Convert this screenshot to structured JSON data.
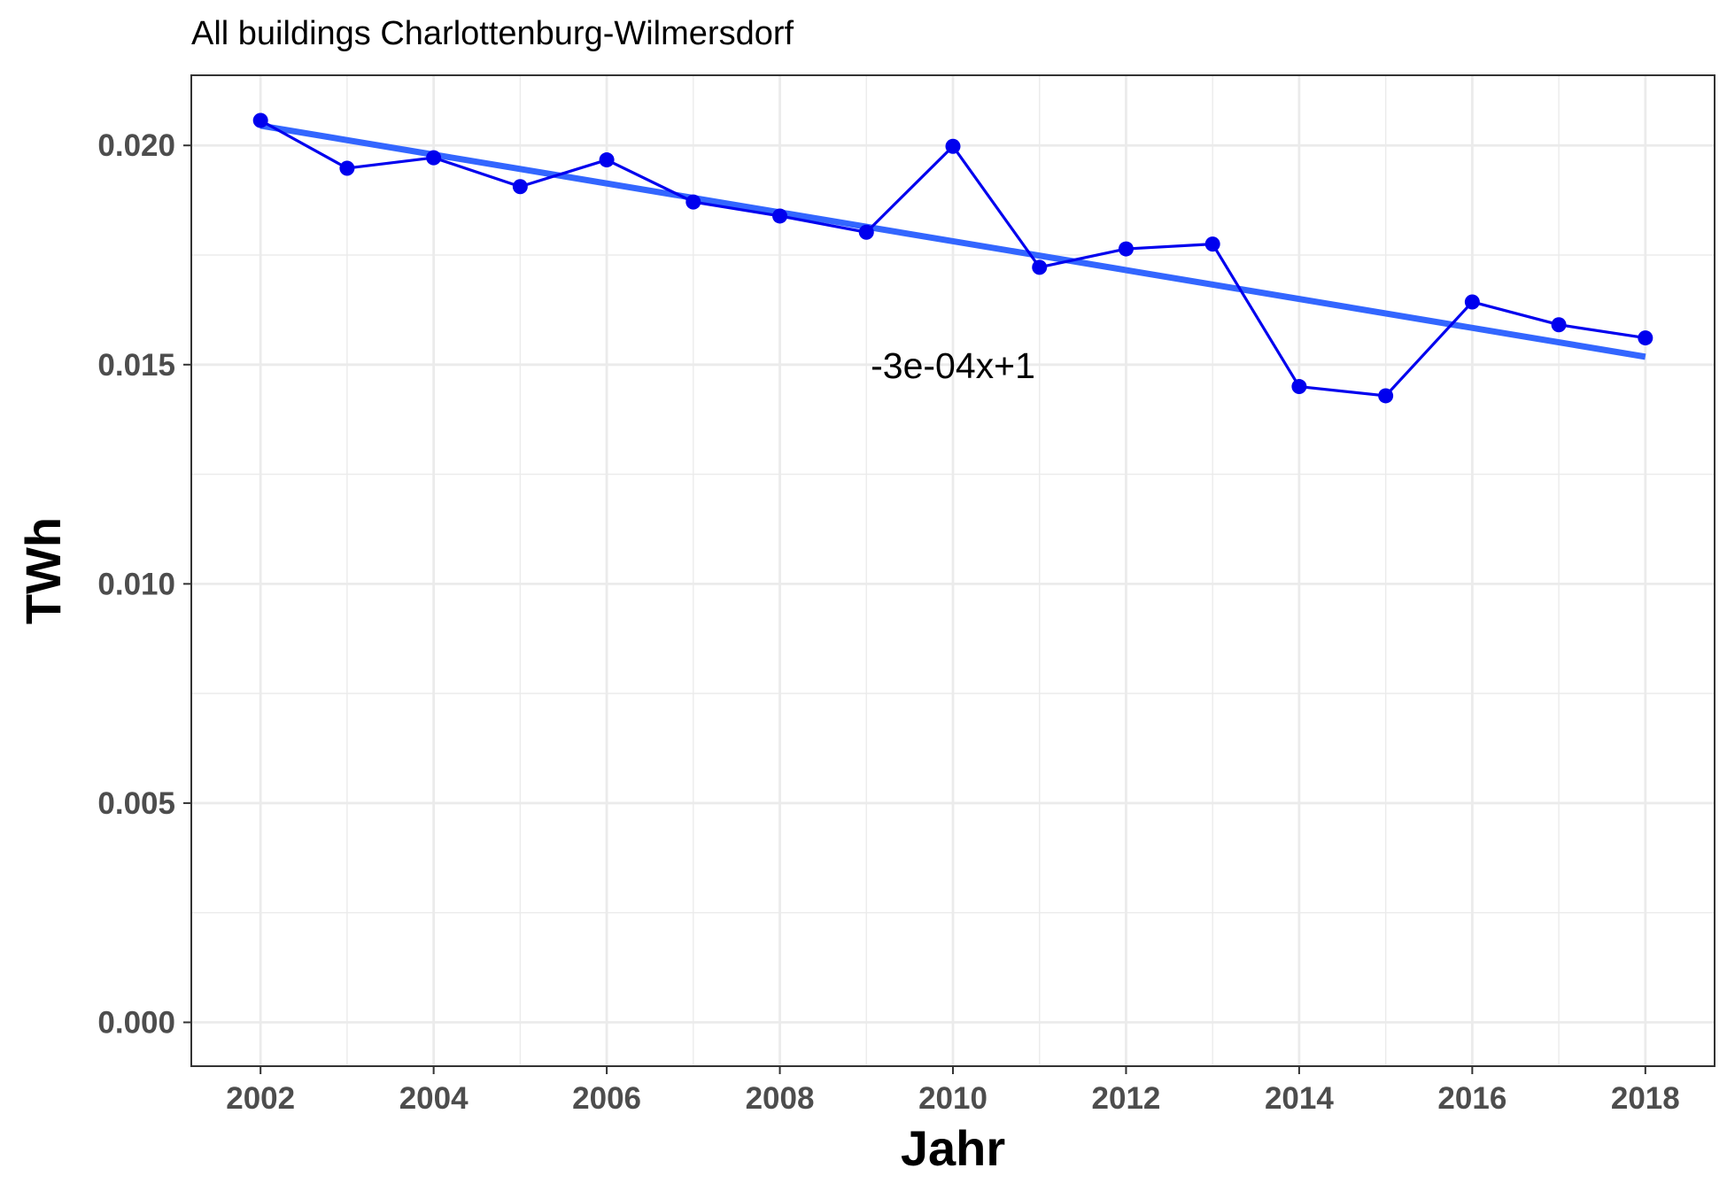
{
  "chart_data": {
    "type": "line",
    "title": "All buildings Charlottenburg-Wilmersdorf",
    "xlabel": "Jahr",
    "ylabel": "TWh",
    "xlim": [
      2001.2,
      2018.8
    ],
    "ylim": [
      -0.001,
      0.0216
    ],
    "x_ticks": [
      "2002",
      "2004",
      "2006",
      "2008",
      "2010",
      "2012",
      "2014",
      "2016",
      "2018"
    ],
    "y_ticks": [
      "0.000",
      "0.005",
      "0.010",
      "0.015",
      "0.020"
    ],
    "grid": true,
    "series": [
      {
        "x": [
          2002,
          2003,
          2004,
          2005,
          2006,
          2007,
          2008,
          2009,
          2010,
          2011,
          2012,
          2013,
          2014,
          2015,
          2016,
          2017,
          2018
        ],
        "values": [
          0.02057,
          0.01948,
          0.01972,
          0.01906,
          0.01967,
          0.01871,
          0.01839,
          0.01802,
          0.01998,
          0.01722,
          0.01764,
          0.01775,
          0.0145,
          0.01429,
          0.01643,
          0.01591,
          0.01561
        ],
        "color": "#0000ee",
        "markers": true
      }
    ],
    "trendline": {
      "x": [
        2002,
        2018
      ],
      "values": [
        0.02045,
        0.01518
      ],
      "color": "#3366ff"
    },
    "annotations": [
      {
        "text": "-3e-04x+1",
        "x": 2010,
        "y": 0.015
      }
    ]
  }
}
